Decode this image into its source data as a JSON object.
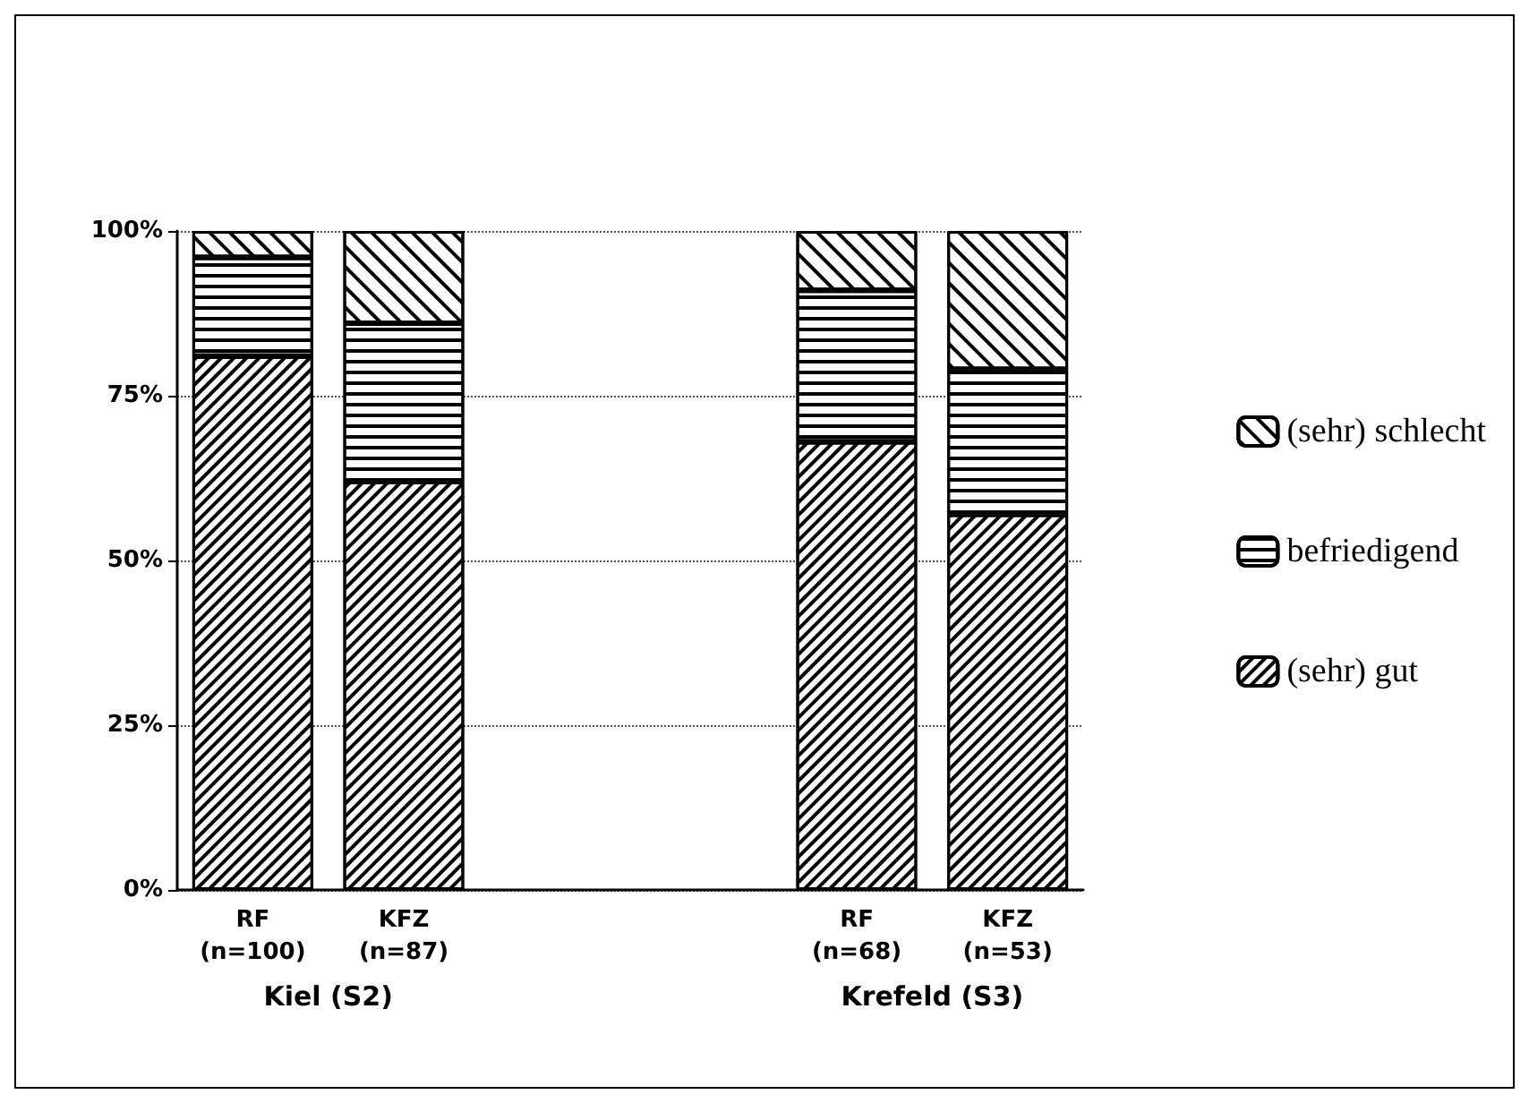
{
  "chart_data": {
    "type": "bar",
    "stacked": true,
    "categories": [
      "RF\n(n=100)",
      "KFZ\n(n=87)",
      null,
      null,
      "RF\n(n=68)",
      "KFZ\n(n=53)"
    ],
    "series": [
      {
        "name": "(sehr) gut",
        "color": "#000000",
        "values": [
          81,
          62,
          null,
          null,
          68,
          57
        ]
      },
      {
        "name": "befriedigend",
        "color": "#000000",
        "values": [
          15,
          24,
          null,
          null,
          23,
          22
        ]
      },
      {
        "name": "(sehr) schlecht",
        "color": "#000000",
        "values": [
          4,
          14,
          null,
          null,
          9,
          21
        ]
      }
    ],
    "ylim": [
      0,
      100
    ],
    "yticks": [
      {
        "value": 0,
        "label": "0%"
      },
      {
        "value": 25,
        "label": "25%"
      },
      {
        "value": 50,
        "label": "50%"
      },
      {
        "value": 75,
        "label": "75%"
      },
      {
        "value": 100,
        "label": "100%"
      }
    ],
    "grid": "y",
    "legend": "right",
    "annotations": [
      "Kiel (S2)",
      "Krefeld (S3)"
    ]
  }
}
